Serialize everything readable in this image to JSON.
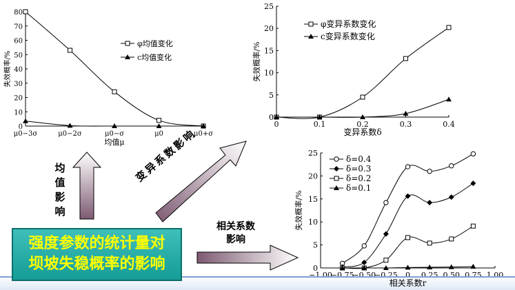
{
  "colors": {
    "arrow_start": "#ffffff",
    "arrow_end": "#7d5a72",
    "title_bg": "#26aea8",
    "title_text": "#ffff00"
  },
  "title": {
    "line1": "强度参数的统计量对",
    "line2": "坝坡失稳概率的影响"
  },
  "arrows": {
    "mean": {
      "label_chars": [
        "均",
        "值",
        "影",
        "响"
      ]
    },
    "cov": {
      "label": "变异系数影响"
    },
    "corr": {
      "label_line1": "相关系数",
      "label_line2": "影响"
    }
  },
  "chart_data": [
    {
      "type": "line",
      "xlabel": "均值μ",
      "ylabel": "失效概率/%",
      "categories": [
        "μ0−3σ",
        "μ0−2σ",
        "μ0−σ",
        "μ0",
        "μ0+σ"
      ],
      "ylim": [
        0,
        80
      ],
      "yticks": [
        0,
        10,
        20,
        30,
        40,
        50,
        60,
        70,
        80
      ],
      "series": [
        {
          "name": "φ均值变化",
          "marker": "square",
          "x": [
            0,
            1,
            2,
            3,
            4
          ],
          "values": [
            80,
            53,
            24,
            4,
            0
          ]
        },
        {
          "name": "c均值变化",
          "marker": "triangle",
          "x": [
            0,
            1,
            2,
            3,
            4
          ],
          "values": [
            3.5,
            0.3,
            0,
            0,
            0
          ]
        }
      ],
      "legend": "upper-right"
    },
    {
      "type": "line",
      "xlabel": "变异系数δ",
      "ylabel": "失效概率/%",
      "xlim": [
        0,
        0.4
      ],
      "xticks": [
        0,
        0.1,
        0.2,
        0.3,
        0.4
      ],
      "ylim": [
        0,
        25
      ],
      "yticks": [
        0,
        5,
        10,
        15,
        20,
        25
      ],
      "series": [
        {
          "name": "φ变异系数变化",
          "marker": "square",
          "x": [
            0,
            0.1,
            0.2,
            0.3,
            0.4
          ],
          "values": [
            0,
            0,
            4.5,
            13.2,
            20.2
          ]
        },
        {
          "name": "c变异系数变化",
          "marker": "triangle",
          "x": [
            0,
            0.1,
            0.2,
            0.3,
            0.4
          ],
          "values": [
            0,
            0,
            0,
            0.8,
            4
          ]
        }
      ],
      "legend": "upper-left"
    },
    {
      "type": "line",
      "xlabel": "相关系数r",
      "ylabel": "失效概率/%",
      "xlim": [
        -1,
        1
      ],
      "xticks": [
        -1,
        -0.75,
        -0.5,
        -0.25,
        0,
        0.25,
        0.5,
        0.75,
        1
      ],
      "xticklabels": [
        "−1.00",
        "−0.75",
        "−0.50",
        "−0.25",
        "0",
        "0.25",
        "0.50",
        "0.75",
        "1.00"
      ],
      "ylim": [
        0,
        25
      ],
      "yticks": [
        0,
        5,
        10,
        15,
        20,
        25
      ],
      "series": [
        {
          "name": "δ=0.4",
          "marker": "circle",
          "x": [
            -0.75,
            -0.5,
            -0.25,
            0,
            0.25,
            0.5,
            0.75
          ],
          "values": [
            1,
            4.8,
            14.2,
            22,
            21,
            22.2,
            24.8
          ]
        },
        {
          "name": "δ=0.3",
          "marker": "diamond",
          "x": [
            -0.75,
            -0.5,
            -0.25,
            0,
            0.25,
            0.5,
            0.75
          ],
          "values": [
            0.2,
            1.2,
            7.4,
            15.6,
            14.2,
            15.4,
            18.4
          ]
        },
        {
          "name": "δ=0.2",
          "marker": "square",
          "x": [
            -0.75,
            -0.5,
            -0.25,
            0,
            0.25,
            0.5,
            0.75
          ],
          "values": [
            0,
            0,
            1.7,
            6.6,
            5.4,
            6.3,
            9.1
          ]
        },
        {
          "name": "δ=0.1",
          "marker": "triangle",
          "x": [
            -0.75,
            -0.5,
            -0.25,
            0,
            0.25,
            0.5,
            0.75
          ],
          "values": [
            0,
            0,
            0,
            0.1,
            0.15,
            0.2,
            0.3
          ]
        }
      ],
      "legend": "upper-left"
    }
  ]
}
